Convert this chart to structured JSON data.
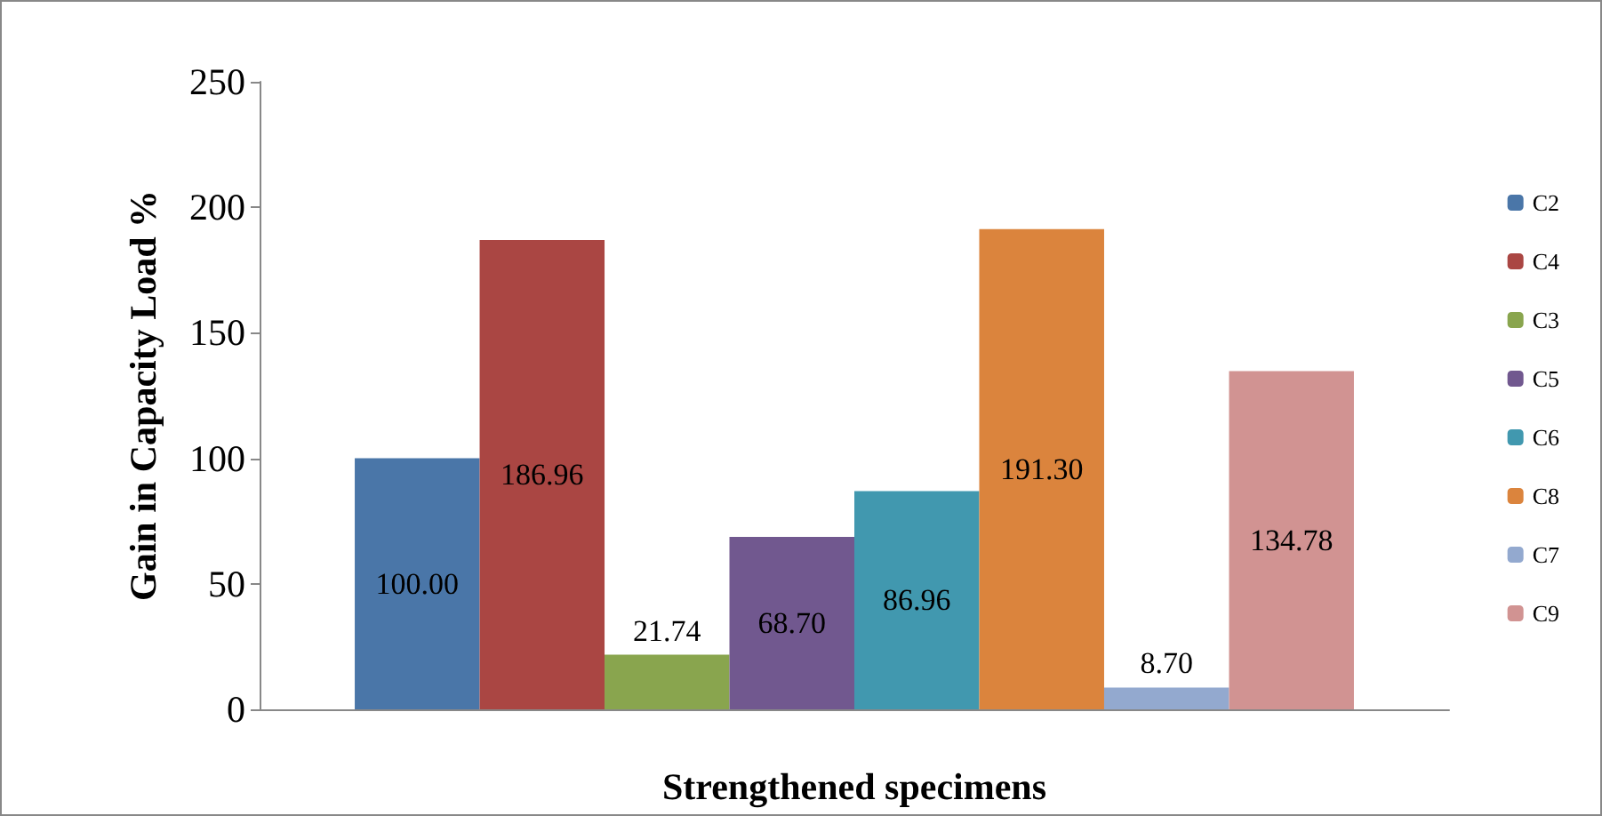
{
  "chart_data": {
    "type": "bar",
    "xlabel": "Strengthened specimens",
    "ylabel": "Gain in Capacity Load %",
    "categories": [
      null
    ],
    "series": [
      {
        "name": "C2",
        "color": "#4a76a8",
        "values": [
          100.0
        ],
        "value_labels": [
          "100.00"
        ]
      },
      {
        "name": "C4",
        "color": "#aa4643",
        "values": [
          186.96
        ],
        "value_labels": [
          "186.96"
        ]
      },
      {
        "name": "C3",
        "color": "#89a54e",
        "values": [
          21.74
        ],
        "value_labels": [
          "21.74"
        ]
      },
      {
        "name": "C5",
        "color": "#71588f",
        "values": [
          68.7
        ],
        "value_labels": [
          "68.70"
        ]
      },
      {
        "name": "C6",
        "color": "#4198af",
        "values": [
          86.96
        ],
        "value_labels": [
          "86.96"
        ]
      },
      {
        "name": "C8",
        "color": "#db843d",
        "values": [
          191.3
        ],
        "value_labels": [
          "191.30"
        ]
      },
      {
        "name": "C7",
        "color": "#93a9cf",
        "values": [
          8.7
        ],
        "value_labels": [
          "8.70"
        ]
      },
      {
        "name": "C9",
        "color": "#d19392",
        "values": [
          134.78
        ],
        "value_labels": [
          "134.78"
        ]
      }
    ],
    "ylim": [
      0,
      250
    ],
    "yticks": [
      0,
      50,
      100,
      150,
      200,
      250
    ],
    "legend": "right"
  }
}
